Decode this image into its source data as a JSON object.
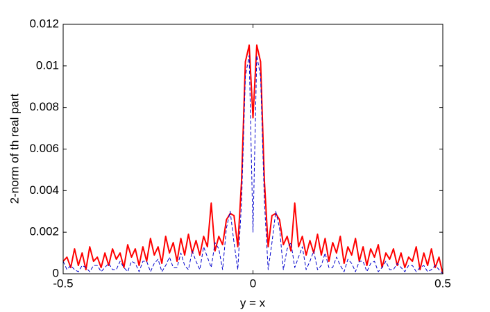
{
  "chart_data": {
    "type": "line",
    "xlabel": "y = x",
    "ylabel": "2-norm of th real part",
    "xlim": [
      -0.5,
      0.5
    ],
    "xticks": [
      -0.5,
      0,
      0.5
    ],
    "ylim": [
      0,
      0.012
    ],
    "yticks": [
      0,
      0.002,
      0.004,
      0.006,
      0.008,
      0.01,
      0.012
    ],
    "grid": false,
    "x": [
      -0.5,
      -0.49,
      -0.48,
      -0.47,
      -0.46,
      -0.45,
      -0.44,
      -0.43,
      -0.42,
      -0.41,
      -0.4,
      -0.39,
      -0.38,
      -0.37,
      -0.36,
      -0.35,
      -0.34,
      -0.33,
      -0.32,
      -0.31,
      -0.3,
      -0.29,
      -0.28,
      -0.27,
      -0.26,
      -0.25,
      -0.24,
      -0.23,
      -0.22,
      -0.21,
      -0.2,
      -0.19,
      -0.18,
      -0.17,
      -0.16,
      -0.15,
      -0.14,
      -0.13,
      -0.12,
      -0.11,
      -0.1,
      -0.09,
      -0.08,
      -0.07,
      -0.06,
      -0.05,
      -0.04,
      -0.03,
      -0.02,
      -0.01,
      0,
      0.01,
      0.02,
      0.03,
      0.04,
      0.05,
      0.06,
      0.07,
      0.08,
      0.09,
      0.1,
      0.11,
      0.12,
      0.13,
      0.14,
      0.15,
      0.16,
      0.17,
      0.18,
      0.19,
      0.2,
      0.21,
      0.22,
      0.23,
      0.24,
      0.25,
      0.26,
      0.27,
      0.28,
      0.29,
      0.3,
      0.31,
      0.32,
      0.33,
      0.34,
      0.35,
      0.36,
      0.37,
      0.38,
      0.39,
      0.4,
      0.41,
      0.42,
      0.43,
      0.44,
      0.45,
      0.46,
      0.47,
      0.48,
      0.49,
      0.5
    ],
    "series": [
      {
        "color": "#ff0000",
        "style": "solid",
        "width": 2,
        "values": [
          0.0006,
          0.0008,
          0.0003,
          0.0012,
          0.0004,
          0.001,
          0.0002,
          0.0013,
          0.0006,
          0.0008,
          0.0003,
          0.001,
          0.0004,
          0.0012,
          0.0007,
          0.001,
          0.0003,
          0.0014,
          0.0008,
          0.0012,
          0.0004,
          0.0013,
          0.0006,
          0.0017,
          0.0009,
          0.0013,
          0.0005,
          0.0018,
          0.001,
          0.0015,
          0.0006,
          0.0017,
          0.0009,
          0.0019,
          0.001,
          0.0016,
          0.0009,
          0.0018,
          0.0013,
          0.0034,
          0.0011,
          0.0018,
          0.0014,
          0.0026,
          0.0029,
          0.0028,
          0.0013,
          0.0045,
          0.0102,
          0.011,
          0.0075,
          0.011,
          0.0102,
          0.0045,
          0.0013,
          0.0028,
          0.0029,
          0.0026,
          0.0014,
          0.0018,
          0.0011,
          0.0034,
          0.0013,
          0.0018,
          0.0009,
          0.0016,
          0.001,
          0.0019,
          0.0009,
          0.0017,
          0.0006,
          0.0015,
          0.001,
          0.0018,
          0.0005,
          0.0013,
          0.0009,
          0.0017,
          0.0006,
          0.0013,
          0.0004,
          0.0012,
          0.0008,
          0.0014,
          0.0003,
          0.001,
          0.0007,
          0.0012,
          0.0004,
          0.001,
          0.0003,
          0.0008,
          0.0006,
          0.0013,
          0.0002,
          0.001,
          0.0004,
          0.0012,
          0.0003,
          0.0008,
          0
        ]
      },
      {
        "color": "#0000cc",
        "style": "dashed",
        "width": 1,
        "values": [
          0.0006,
          0.0002,
          0.0004,
          0.0002,
          0.0001,
          0.0004,
          0.0003,
          0.0001,
          0.0004,
          0.0004,
          0.0001,
          0.0003,
          0.0005,
          0.0002,
          0.0002,
          0.0006,
          0.0003,
          0.0001,
          0.0006,
          0.0005,
          0.0001,
          0.0006,
          0.0006,
          0.0001,
          0.0005,
          0.0007,
          0.0001,
          0.0004,
          0.0008,
          0.0003,
          0.0003,
          0.001,
          0.0004,
          0.0002,
          0.0011,
          0.0006,
          0.0002,
          0.0013,
          0.0008,
          0.0003,
          0.0015,
          0.0012,
          0.0002,
          0.0022,
          0.003,
          0.0015,
          0.0002,
          0.0035,
          0.0095,
          0.0105,
          0.002,
          0.0105,
          0.0095,
          0.0035,
          0.0002,
          0.0015,
          0.003,
          0.0022,
          0.0002,
          0.0012,
          0.0015,
          0.0003,
          0.0008,
          0.0013,
          0.0002,
          0.0006,
          0.0011,
          0.0002,
          0.0004,
          0.001,
          0.0003,
          0.0003,
          0.0008,
          0.0004,
          0.0001,
          0.0007,
          0.0005,
          0.0001,
          0.0006,
          0.0006,
          0.0001,
          0.0005,
          0.0006,
          0.0001,
          0.0003,
          0.0006,
          0.0002,
          0.0002,
          0.0005,
          0.0003,
          0.0001,
          0.0004,
          0.0004,
          0.0001,
          0.0003,
          0.0004,
          0.0001,
          0.0002,
          0.0004,
          0.0002,
          0
        ]
      }
    ]
  }
}
